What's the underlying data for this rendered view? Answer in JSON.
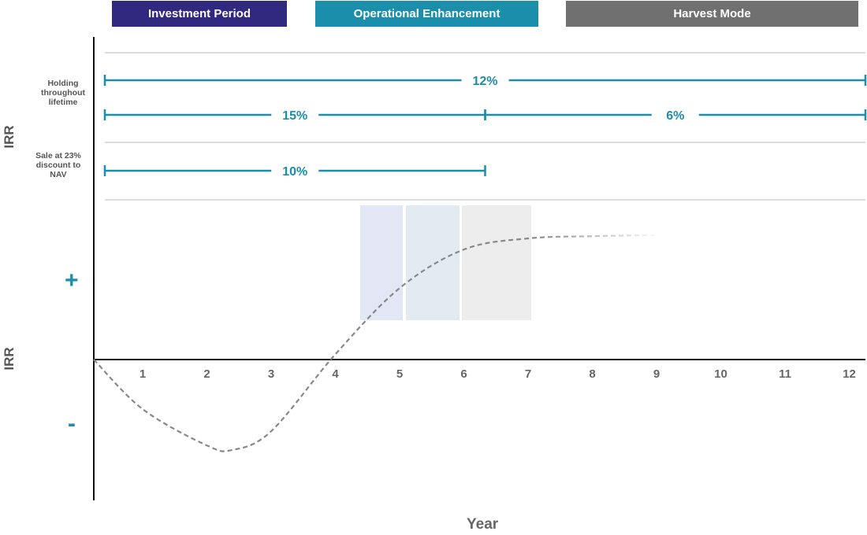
{
  "phases": [
    {
      "label": "Investment Period",
      "color": "#31297f"
    },
    {
      "label": "Operational Enhancement",
      "color": "#1b8eab"
    },
    {
      "label": "Harvest Mode",
      "color": "#707070"
    }
  ],
  "y_axis": {
    "top_label": "IRR",
    "bottom_label": "IRR",
    "plus": "+",
    "minus": "-"
  },
  "scenarios": {
    "holding_label": "Holding throughout lifetime",
    "sale_label": "Sale at 23% discount to NAV"
  },
  "colors": {
    "accent": "#1b8eab",
    "axis": "#111111",
    "grid": "#c8c8c8",
    "curve": "#888888",
    "tick_text": "#666666"
  },
  "chart_data": {
    "type": "line",
    "xlabel": "Year",
    "ylabel": "IRR",
    "x_ticks": [
      1,
      2,
      3,
      4,
      5,
      6,
      7,
      8,
      9,
      10,
      11,
      12
    ],
    "xlim": [
      0,
      12
    ],
    "irr_bars": [
      {
        "group": "Holding throughout lifetime",
        "start": 0,
        "end": 12,
        "label": "12%"
      },
      {
        "group": "Holding throughout lifetime",
        "start": 0,
        "end": 6,
        "label": "15%"
      },
      {
        "group": "Holding throughout lifetime",
        "start": 6,
        "end": 12,
        "label": "6%"
      },
      {
        "group": "Sale at 23% discount to NAV",
        "start": 0,
        "end": 6,
        "label": "10%"
      }
    ],
    "curve": {
      "style": "dashed",
      "x": [
        0,
        1,
        2,
        2.4,
        3,
        4,
        5,
        6,
        7,
        8,
        9
      ],
      "y": [
        0,
        -0.45,
        -0.78,
        -0.82,
        -0.65,
        0.05,
        0.65,
        1.0,
        1.1,
        1.12,
        1.13
      ]
    }
  }
}
